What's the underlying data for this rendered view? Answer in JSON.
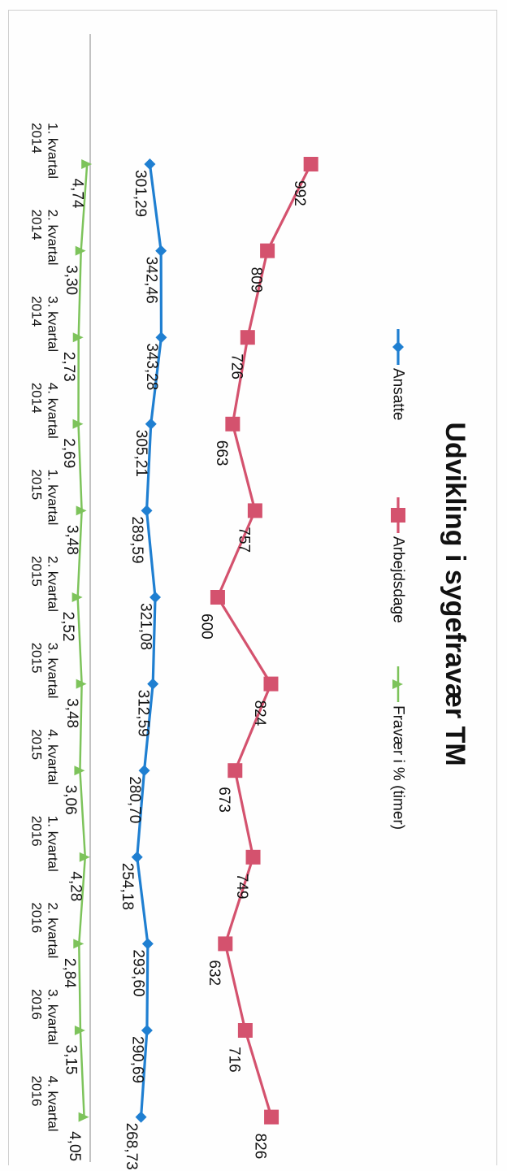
{
  "chart_data": {
    "type": "line",
    "title": "Udvikling i sygefravær TM",
    "categories": [
      "1. kvartal 2014",
      "2. kvartal 2014",
      "3. kvartal 2014",
      "4. kvartal 2014",
      "1. kvartal 2015",
      "2. kvartal 2015",
      "3. kvartal 2015",
      "4. kvartal 2015",
      "1. kvartal 2016",
      "2. kvartal 2016",
      "3. kvartal 2016",
      "4. kvartal 2016"
    ],
    "category_lines": [
      [
        "1. kvartal",
        "2014"
      ],
      [
        "2. kvartal",
        "2014"
      ],
      [
        "3. kvartal",
        "2014"
      ],
      [
        "4. kvartal",
        "2014"
      ],
      [
        "1. kvartal",
        "2015"
      ],
      [
        "2. kvartal",
        "2015"
      ],
      [
        "3. kvartal",
        "2015"
      ],
      [
        "4. kvartal",
        "2015"
      ],
      [
        "1. kvartal",
        "2016"
      ],
      [
        "2. kvartal",
        "2016"
      ],
      [
        "3. kvartal",
        "2016"
      ],
      [
        "4. kvartal",
        "2016"
      ]
    ],
    "series": [
      {
        "name": "Ansatte",
        "color": "#1f7fd1",
        "marker": "diamond",
        "values": [
          301.29,
          342.46,
          343.28,
          305.21,
          289.59,
          321.08,
          312.59,
          280.7,
          254.18,
          293.6,
          290.69,
          268.73
        ],
        "labels": [
          "301,29",
          "342,46",
          "343,28",
          "305,21",
          "289,59",
          "321,08",
          "312,59",
          "280,70",
          "254,18",
          "293,60",
          "290,69",
          "268,73"
        ]
      },
      {
        "name": "Arbejdsdage",
        "color": "#d4526e",
        "marker": "square",
        "values": [
          992,
          809,
          726,
          663,
          757,
          600,
          824,
          673,
          749,
          632,
          716,
          826
        ],
        "labels": [
          "992",
          "809",
          "726",
          "663",
          "757",
          "600",
          "824",
          "673",
          "749",
          "632",
          "716",
          "826"
        ]
      },
      {
        "name": "Fravær i % (timer)",
        "color": "#7dc35b",
        "marker": "triangle",
        "values": [
          4.74,
          3.3,
          2.73,
          2.69,
          3.48,
          2.52,
          3.48,
          3.06,
          4.28,
          2.84,
          3.15,
          4.05
        ],
        "labels": [
          "4,74",
          "3,30",
          "2,73",
          "2,69",
          "3,48",
          "2,52",
          "3,48",
          "3,06",
          "4,28",
          "2,84",
          "3,15",
          "4,05"
        ]
      }
    ],
    "orientation": "rotated 90° clockwise",
    "legend_position": "top",
    "grid": false
  }
}
